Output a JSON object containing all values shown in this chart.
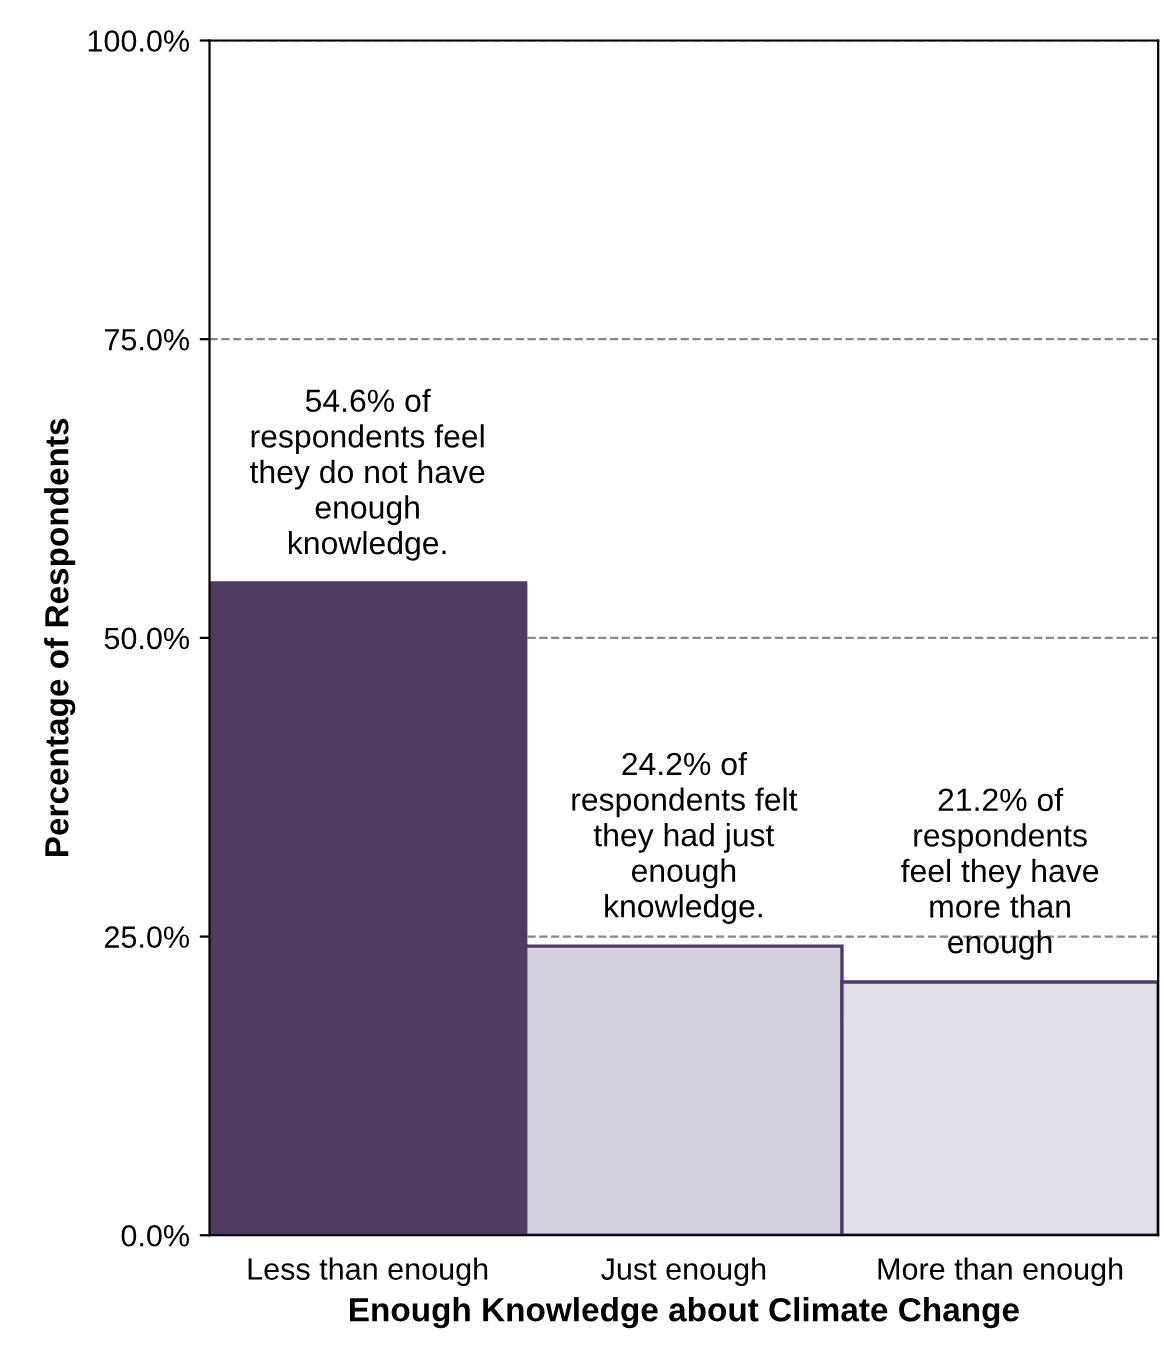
{
  "chart_data": {
    "type": "bar",
    "xlabel": "Enough Knowledge about Climate Change",
    "ylabel": "Percentage of Respondents",
    "categories": [
      "Less than enough",
      "Just enough",
      "More than enough"
    ],
    "values": [
      54.6,
      24.2,
      21.2
    ],
    "colors": [
      "#4f3b63",
      "#d6d1de",
      "#e2dee8"
    ],
    "ylim": [
      0,
      100
    ],
    "yticks": [
      {
        "value": 0,
        "label": "0.0%"
      },
      {
        "value": 25,
        "label": "25.0%"
      },
      {
        "value": 50,
        "label": "50.0%"
      },
      {
        "value": 75,
        "label": "75.0%"
      },
      {
        "value": 100,
        "label": "100.0%"
      }
    ],
    "grid": "y",
    "annotations": [
      {
        "text": "54.6% of\nrespondents feel\nthey do not have\nenough\nknowledge.",
        "x": "Less than enough",
        "y": 54.6
      },
      {
        "text": "24.2% of\nrespondents felt\nthey had just\nenough\nknowledge.",
        "x": "Just enough",
        "y": 24.2
      },
      {
        "text": "21.2% of\nrespondents\nfeel they have\nmore than\nenough",
        "x": "More than enough",
        "y": 21.2
      }
    ]
  }
}
